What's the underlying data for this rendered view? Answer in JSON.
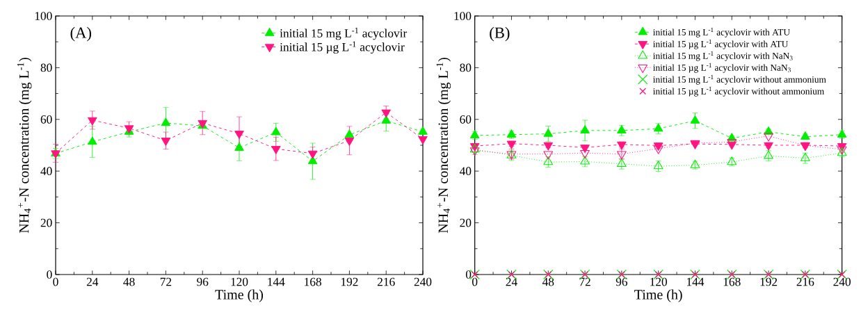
{
  "chart_data": [
    {
      "type": "line",
      "title": "(A)",
      "xlabel": "Time (h)",
      "ylabel": "NH$_{4}$$^{+}$-N concentration (mg L$^{-1}$)",
      "x": [
        0,
        24,
        48,
        72,
        96,
        120,
        144,
        168,
        192,
        216,
        240
      ],
      "xlim": [
        0,
        240
      ],
      "xticks": [
        0,
        24,
        48,
        72,
        96,
        120,
        144,
        168,
        192,
        216,
        240
      ],
      "ylim": [
        0,
        100
      ],
      "yticks": [
        0,
        20,
        40,
        60,
        80,
        100
      ],
      "legend": "top right",
      "line_style": "dashed",
      "series": [
        {
          "name": "initial 15 mg L$^{-1}$ acyclovir",
          "color": "#00ee00",
          "marker": "triangle",
          "values": [
            46.8,
            51.3,
            55.2,
            58.6,
            57.5,
            49,
            55,
            43.8,
            54,
            59.5,
            55.2
          ],
          "errors": [
            2,
            6,
            2,
            6,
            null,
            5,
            3.5,
            7,
            null,
            4,
            1
          ]
        },
        {
          "name": "initial 15 µg L$^{-1}$ acyclovir",
          "color": "#ff1480",
          "marker": "triangle-down",
          "values": [
            46.9,
            59.7,
            56.6,
            51.8,
            58.6,
            54.5,
            48.6,
            46.8,
            51.8,
            62.7,
            52.4
          ],
          "errors": [
            3.5,
            3.5,
            2.5,
            3.3,
            4.5,
            6.5,
            4.5,
            2.5,
            5.5,
            2.5,
            null
          ]
        }
      ]
    },
    {
      "type": "line",
      "title": "(B)",
      "xlabel": "Time (h)",
      "ylabel": "NH$_{4}$$^{+}$-N concentration (mg L$^{-1}$)",
      "x": [
        0,
        24,
        48,
        72,
        96,
        120,
        144,
        168,
        192,
        216,
        240
      ],
      "xlim": [
        0,
        240
      ],
      "xticks": [
        0,
        24,
        48,
        72,
        96,
        120,
        144,
        168,
        192,
        216,
        240
      ],
      "ylim": [
        0,
        100
      ],
      "yticks": [
        0,
        20,
        40,
        60,
        80,
        100
      ],
      "legend": "top right",
      "series": [
        {
          "name": "initial 15 mg L$^{-1}$ acyclovir with ATU",
          "color": "#00ee00",
          "marker": "triangle",
          "line_style": "dashed",
          "values": [
            53.8,
            54.1,
            54.4,
            55.7,
            55.7,
            56.4,
            59.5,
            52.7,
            55.2,
            53.3,
            54.1
          ],
          "errors": [
            1.5,
            1.5,
            3,
            4,
            2,
            2,
            3,
            1,
            1,
            1,
            1.5
          ]
        },
        {
          "name": "initial 15 µg L$^{-1}$ acyclovir with ATU",
          "color": "#ff1480",
          "marker": "triangle-down",
          "line_style": "dashed",
          "values": [
            49.7,
            50.6,
            50,
            49.1,
            50.3,
            49.9,
            50.5,
            50.3,
            50,
            50,
            49.7
          ],
          "errors": [
            1,
            1,
            1,
            1,
            1,
            1,
            null,
            null,
            1,
            1,
            1
          ]
        },
        {
          "name": "initial 15 mg L$^{-1}$ acyclovir with NaN$_{3}$",
          "color": "#00ee00",
          "marker": "triangle-open",
          "line_style": "dotted",
          "values": [
            48.4,
            46.1,
            43.5,
            43.7,
            42.8,
            41.9,
            42.3,
            43.5,
            45.9,
            45,
            47
          ],
          "errors": [
            2,
            2,
            2,
            2,
            2,
            2,
            1.5,
            1.5,
            2,
            2,
            1.5
          ]
        },
        {
          "name": "initial 15 µg L$^{-1}$ acyclovir with NaN$_{3}$",
          "color": "#ff1480",
          "marker": "triangle-down-open",
          "line_style": "dotted",
          "values": [
            48,
            46.6,
            46.6,
            47,
            46.6,
            48.7,
            50.8,
            51.3,
            53.6,
            49.9,
            48.4
          ],
          "errors": [
            null,
            2,
            null,
            null,
            2,
            null,
            null,
            null,
            null,
            null,
            null
          ]
        },
        {
          "name": "initial 15 mg L$^{-1}$ acyclovir without ammonium",
          "type": "scatter",
          "color": "#00ee00",
          "marker": "cross",
          "values": [
            0,
            0,
            0,
            0,
            0,
            0,
            0,
            0,
            0,
            0,
            0
          ]
        },
        {
          "name": "initial 15 µg L$^{-1}$ acyclovir without ammonium",
          "type": "scatter",
          "color": "#ff1480",
          "marker": "cross",
          "values": [
            0,
            0,
            0,
            0,
            0,
            0,
            0,
            0,
            0,
            0,
            0
          ]
        }
      ]
    }
  ]
}
